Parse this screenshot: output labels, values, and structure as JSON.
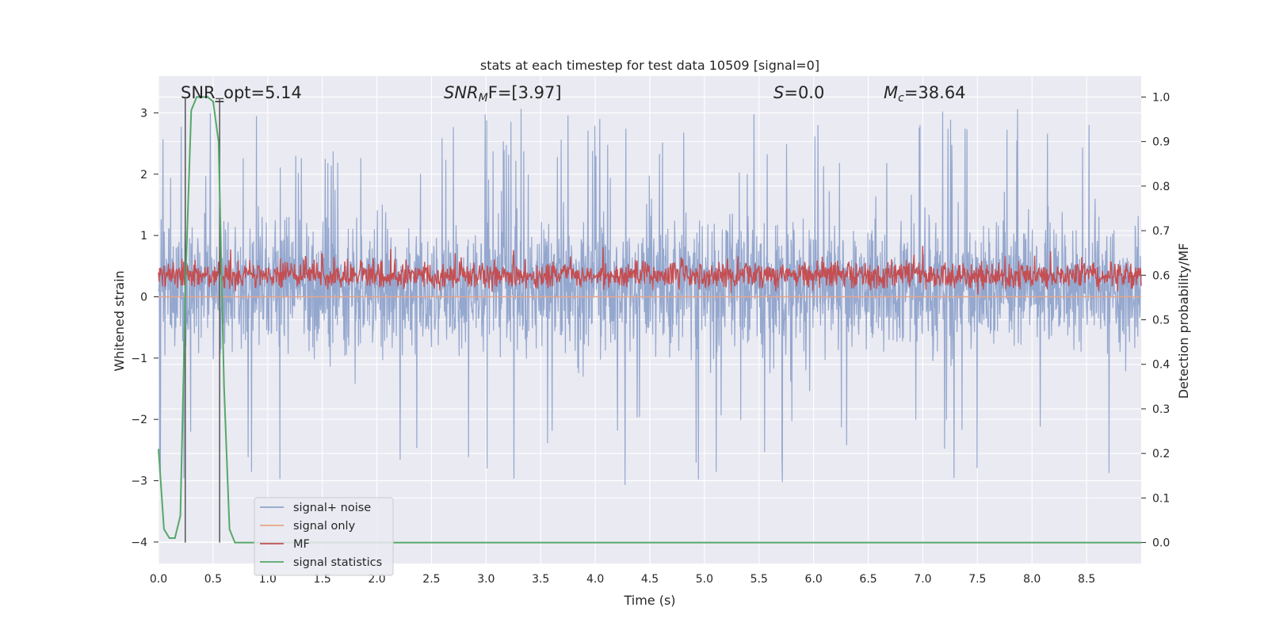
{
  "chart_data": {
    "type": "line",
    "title": "stats at each timestep for test data 10509 [signal=0]",
    "xlabel": "Time (s)",
    "ylabel": "Whitened strain",
    "ylabel_right": "Detection probability/MF",
    "xlim": [
      0.0,
      9.0
    ],
    "ylim": [
      -4.35,
      3.6
    ],
    "ylim_right": [
      -0.047,
      1.047
    ],
    "x_ticks": [
      "0.0",
      "0.5",
      "1.0",
      "1.5",
      "2.0",
      "2.5",
      "3.0",
      "3.5",
      "4.0",
      "4.5",
      "5.0",
      "5.5",
      "6.0",
      "6.5",
      "7.0",
      "7.5",
      "8.0",
      "8.5"
    ],
    "y_ticks": [
      "3",
      "2",
      "1",
      "0",
      "−1",
      "−2",
      "−3",
      "−4"
    ],
    "y_ticks_right": [
      "1.0",
      "0.9",
      "0.8",
      "0.7",
      "0.6",
      "0.5",
      "0.4",
      "0.3",
      "0.2",
      "0.1",
      "0.0"
    ],
    "grid": true,
    "legend_position": "lower-left",
    "colors": {
      "plot_background": "#eaeaf2",
      "grid": "#ffffff",
      "signal_noise": "#8fa3cb",
      "signal_only": "#e8a58a",
      "mf": "#c44e52",
      "signal_statistics": "#55a868",
      "markers": "#555555"
    },
    "annotations": {
      "snr_opt": "SNR_opt=5.14",
      "snr_mf_main": "SNR",
      "snr_mf_sub": "M",
      "snr_mf_rest": "F=[3.97]",
      "s_main": "S",
      "s_rest": "=0.0",
      "mc_main": "M",
      "mc_sub": "c",
      "mc_rest": "=38.64"
    },
    "vertical_markers_x": [
      0.245,
      0.56
    ],
    "series": [
      {
        "name": "signal+ noise",
        "description": "noisy whitened strain, envelope approx -1.9..2.2 with spikes to ~3.3 and ~-4.0",
        "envelope": {
          "upper": 2.2,
          "lower": -1.9
        }
      },
      {
        "name": "signal only",
        "values_x": [
          0,
          9
        ],
        "values_y": [
          0.0,
          0.0
        ]
      },
      {
        "name": "MF",
        "description": "matched filter output on right axis, roughly 0.55..0.68",
        "envelope": {
          "upper": 0.68,
          "lower": 0.55
        }
      },
      {
        "name": "signal statistics",
        "x": [
          0.0,
          0.05,
          0.1,
          0.15,
          0.2,
          0.25,
          0.3,
          0.35,
          0.4,
          0.45,
          0.5,
          0.55,
          0.6,
          0.65,
          0.7,
          0.75,
          0.8,
          9.0
        ],
        "y": [
          0.21,
          0.03,
          0.01,
          0.01,
          0.06,
          0.6,
          0.97,
          1.0,
          1.0,
          1.0,
          0.99,
          0.9,
          0.35,
          0.03,
          0.0,
          0.0,
          0.0,
          0.0
        ]
      }
    ]
  }
}
